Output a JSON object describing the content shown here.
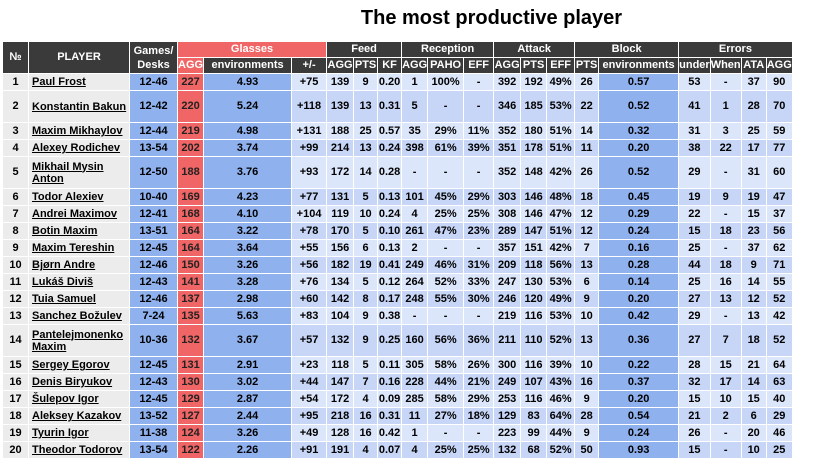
{
  "title": "The most productive player",
  "headers": {
    "num": "№",
    "player": "PLAYER",
    "games": "Games/ Desks",
    "glasses": "Glasses",
    "feed": "Feed",
    "reception": "Reception",
    "attack": "Attack",
    "block": "Block",
    "errors": "Errors",
    "sub": [
      "AGG",
      "environments",
      "+/-",
      "AGG",
      "PTS",
      "KF",
      "AGG",
      "PAHO",
      "EFF",
      "AGG",
      "PTS",
      "EFF",
      "PTS",
      "environments",
      "under",
      "When",
      "ATA",
      "AGG"
    ]
  },
  "rows": [
    {
      "cells": [
        "1",
        "Paul Frost",
        "12-46",
        "227",
        "4.93",
        "+75",
        "139",
        "9",
        "0.20",
        "1",
        "100%",
        "-",
        "392",
        "192",
        "49%",
        "26",
        "0.57",
        "53",
        "-",
        "37",
        "90"
      ]
    },
    {
      "cells": [
        "2",
        "Konstantin Bakun",
        "12-42",
        "220",
        "5.24",
        "+118",
        "139",
        "13",
        "0.31",
        "5",
        "-",
        "-",
        "346",
        "185",
        "53%",
        "22",
        "0.52",
        "41",
        "1",
        "28",
        "70"
      ]
    },
    {
      "cells": [
        "3",
        "Maxim Mikhaylov",
        "12-44",
        "219",
        "4.98",
        "+131",
        "188",
        "25",
        "0.57",
        "35",
        "29%",
        "11%",
        "352",
        "180",
        "51%",
        "14",
        "0.32",
        "31",
        "3",
        "25",
        "59"
      ]
    },
    {
      "cells": [
        "4",
        "Alexey Rodichev",
        "13-54",
        "202",
        "3.74",
        "+99",
        "214",
        "13",
        "0.24",
        "398",
        "61%",
        "39%",
        "351",
        "178",
        "51%",
        "11",
        "0.20",
        "38",
        "22",
        "17",
        "77"
      ]
    },
    {
      "cells": [
        "5",
        "Mikhail Mysin Anton",
        "12-50",
        "188",
        "3.76",
        "+93",
        "172",
        "14",
        "0.28",
        "-",
        "-",
        "-",
        "352",
        "148",
        "42%",
        "26",
        "0.52",
        "29",
        "-",
        "31",
        "60"
      ]
    },
    {
      "cells": [
        "6",
        "Todor Alexiev",
        "10-40",
        "169",
        "4.23",
        "+77",
        "131",
        "5",
        "0.13",
        "101",
        "45%",
        "29%",
        "303",
        "146",
        "48%",
        "18",
        "0.45",
        "19",
        "9",
        "19",
        "47"
      ]
    },
    {
      "cells": [
        "7",
        "Andrei Maximov",
        "12-41",
        "168",
        "4.10",
        "+104",
        "119",
        "10",
        "0.24",
        "4",
        "25%",
        "25%",
        "308",
        "146",
        "47%",
        "12",
        "0.29",
        "22",
        "-",
        "15",
        "37"
      ]
    },
    {
      "cells": [
        "8",
        "Botin Maxim",
        "13-51",
        "164",
        "3.22",
        "+78",
        "170",
        "5",
        "0.10",
        "261",
        "47%",
        "23%",
        "289",
        "147",
        "51%",
        "12",
        "0.24",
        "15",
        "18",
        "23",
        "56"
      ]
    },
    {
      "cells": [
        "9",
        "Maxim Tereshin",
        "12-45",
        "164",
        "3.64",
        "+55",
        "156",
        "6",
        "0.13",
        "2",
        "-",
        "-",
        "357",
        "151",
        "42%",
        "7",
        "0.16",
        "25",
        "-",
        "37",
        "62"
      ]
    },
    {
      "cells": [
        "10",
        "Bjørn Andre",
        "12-46",
        "150",
        "3.26",
        "+56",
        "182",
        "19",
        "0.41",
        "249",
        "46%",
        "31%",
        "209",
        "118",
        "56%",
        "13",
        "0.28",
        "44",
        "18",
        "9",
        "71"
      ]
    },
    {
      "cells": [
        "11",
        "Lukáš Diviš",
        "12-43",
        "141",
        "3.28",
        "+76",
        "134",
        "5",
        "0.12",
        "264",
        "52%",
        "33%",
        "247",
        "130",
        "53%",
        "6",
        "0.14",
        "25",
        "16",
        "14",
        "55"
      ]
    },
    {
      "cells": [
        "12",
        "Tuia Samuel",
        "12-46",
        "137",
        "2.98",
        "+60",
        "142",
        "8",
        "0.17",
        "248",
        "55%",
        "30%",
        "246",
        "120",
        "49%",
        "9",
        "0.20",
        "27",
        "13",
        "12",
        "52"
      ]
    },
    {
      "cells": [
        "13",
        "Sanchez Božulev",
        "7-24",
        "135",
        "5.63",
        "+83",
        "104",
        "9",
        "0.38",
        "-",
        "-",
        "-",
        "219",
        "116",
        "53%",
        "10",
        "0.42",
        "29",
        "-",
        "13",
        "42"
      ]
    },
    {
      "cells": [
        "14",
        "Pantelejmonenko Maxim",
        "10-36",
        "132",
        "3.67",
        "+57",
        "132",
        "9",
        "0.25",
        "160",
        "56%",
        "36%",
        "211",
        "110",
        "52%",
        "13",
        "0.36",
        "27",
        "7",
        "18",
        "52"
      ]
    },
    {
      "cells": [
        "15",
        "Sergey Egorov",
        "12-45",
        "131",
        "2.91",
        "+23",
        "118",
        "5",
        "0.11",
        "305",
        "58%",
        "26%",
        "300",
        "116",
        "39%",
        "10",
        "0.22",
        "28",
        "15",
        "21",
        "64"
      ]
    },
    {
      "cells": [
        "16",
        "Denis Biryukov",
        "12-43",
        "130",
        "3.02",
        "+44",
        "147",
        "7",
        "0.16",
        "228",
        "44%",
        "21%",
        "249",
        "107",
        "43%",
        "16",
        "0.37",
        "32",
        "17",
        "14",
        "63"
      ]
    },
    {
      "cells": [
        "17",
        "Šulepov Igor",
        "12-45",
        "129",
        "2.87",
        "+54",
        "172",
        "4",
        "0.09",
        "285",
        "58%",
        "29%",
        "253",
        "116",
        "46%",
        "9",
        "0.20",
        "15",
        "10",
        "15",
        "40"
      ]
    },
    {
      "cells": [
        "18",
        "Aleksey Kazakov",
        "13-52",
        "127",
        "2.44",
        "+95",
        "218",
        "16",
        "0.31",
        "11",
        "27%",
        "18%",
        "129",
        "83",
        "64%",
        "28",
        "0.54",
        "21",
        "2",
        "6",
        "29"
      ]
    },
    {
      "cells": [
        "19",
        "Tyurin Igor",
        "11-38",
        "124",
        "3.26",
        "+49",
        "128",
        "16",
        "0.42",
        "1",
        "-",
        "-",
        "223",
        "99",
        "44%",
        "9",
        "0.24",
        "26",
        "-",
        "20",
        "46"
      ]
    },
    {
      "cells": [
        "20",
        "Theodor Todorov",
        "13-54",
        "122",
        "2.26",
        "+91",
        "191",
        "4",
        "0.07",
        "4",
        "25%",
        "25%",
        "132",
        "68",
        "52%",
        "50",
        "0.93",
        "15",
        "-",
        "10",
        "25"
      ]
    }
  ]
}
